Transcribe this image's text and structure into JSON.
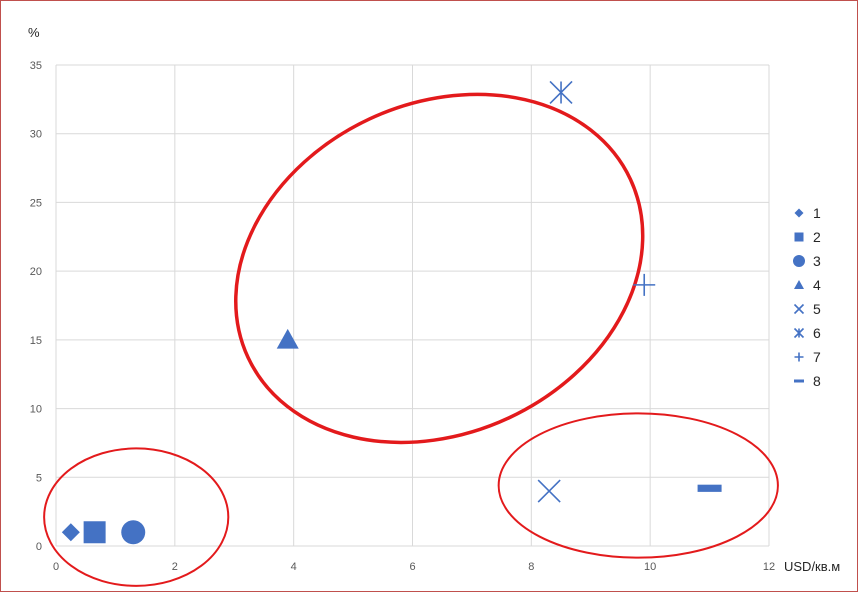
{
  "chart_data": {
    "type": "scatter",
    "xlabel": "USD/кв.м",
    "ylabel": "%",
    "xlim": [
      0,
      12
    ],
    "ylim": [
      0,
      35
    ],
    "x_ticks": [
      0,
      2,
      4,
      6,
      8,
      10,
      12
    ],
    "y_ticks": [
      0,
      5,
      10,
      15,
      20,
      25,
      30,
      35
    ],
    "grid": true,
    "legend_position": "right",
    "marker_color": "#4472c4",
    "highlight_color": "#e31a1c",
    "series": [
      {
        "name": "1",
        "marker": "diamond",
        "x": [
          0.25
        ],
        "y": [
          1
        ]
      },
      {
        "name": "2",
        "marker": "square",
        "x": [
          0.65
        ],
        "y": [
          1
        ]
      },
      {
        "name": "3",
        "marker": "circle",
        "x": [
          1.3
        ],
        "y": [
          1
        ]
      },
      {
        "name": "4",
        "marker": "triangle",
        "x": [
          3.9
        ],
        "y": [
          15
        ]
      },
      {
        "name": "5",
        "marker": "x",
        "x": [
          8.3
        ],
        "y": [
          4
        ]
      },
      {
        "name": "6",
        "marker": "star",
        "x": [
          8.5
        ],
        "y": [
          33
        ]
      },
      {
        "name": "7",
        "marker": "plus",
        "x": [
          9.9
        ],
        "y": [
          19
        ]
      },
      {
        "name": "8",
        "marker": "dash",
        "x": [
          11
        ],
        "y": [
          4.2
        ]
      }
    ],
    "annotations": [
      {
        "type": "ellipse",
        "name": "left-cluster",
        "cx": 1.35,
        "cy": 2.1,
        "rx": 1.55,
        "ry": 5.0,
        "angle": 0
      },
      {
        "type": "ellipse",
        "name": "center-cluster",
        "cx": 6.45,
        "cy": 20.2,
        "rx": 3.55,
        "ry": 12.0,
        "angle": -25
      },
      {
        "type": "ellipse",
        "name": "right-cluster",
        "cx": 9.8,
        "cy": 4.4,
        "rx": 2.35,
        "ry": 5.25,
        "angle": 0
      }
    ]
  }
}
